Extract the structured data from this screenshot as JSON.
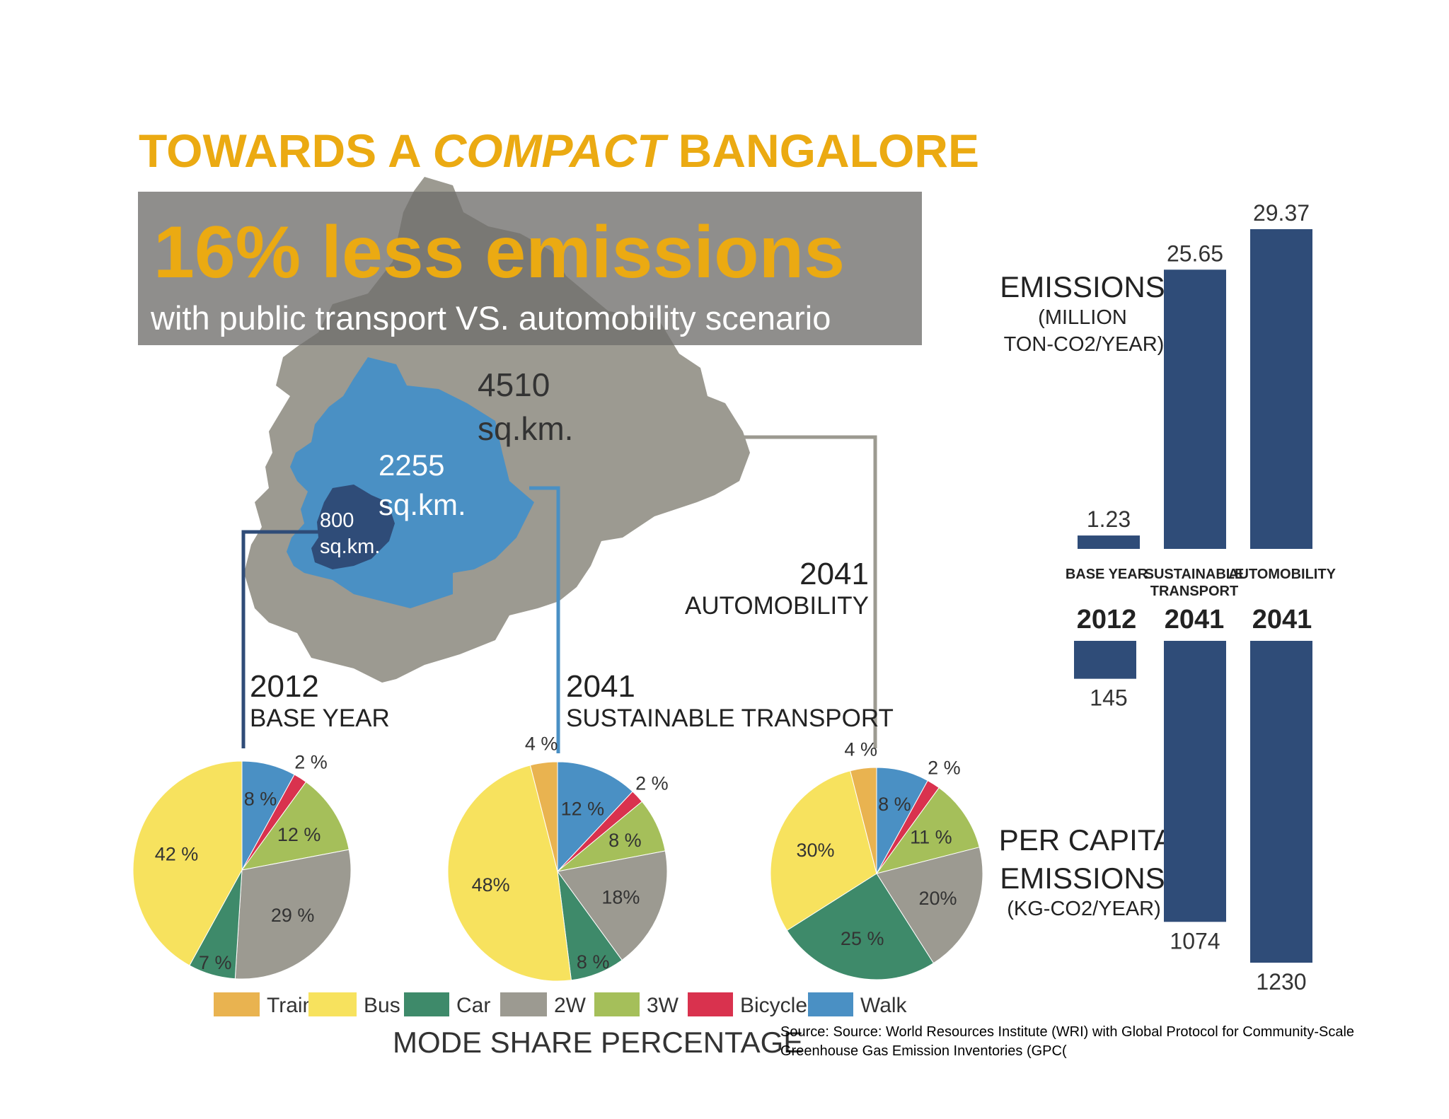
{
  "colors": {
    "title_yellow": "#EBAA12",
    "train": "#E9B350",
    "bus": "#F7E25E",
    "car": "#3E8A6A",
    "2w": "#9C9A91",
    "3w": "#A5BF5A",
    "bicycle": "#D9324E",
    "walk": "#4A90C4",
    "bar_navy": "#2F4C78",
    "map_gray": "#9C9A91",
    "map_blue": "#4A90C4",
    "map_dark": "#2F4C78"
  },
  "title": {
    "part1": "TOWARDS A ",
    "part2": "COMPACT",
    "part3": " BANGALORE"
  },
  "banner": {
    "headline": "16% less emissions",
    "subline": "with public transport VS. automobility scenario"
  },
  "map": {
    "outer_value": "4510",
    "outer_unit": "sq.km.",
    "mid_value": "2255",
    "mid_unit": "sq.km.",
    "inner_value": "800",
    "inner_unit": "sq.km."
  },
  "scenarios": [
    {
      "year": "2012",
      "label": "BASE YEAR"
    },
    {
      "year": "2041",
      "label": "SUSTAINABLE TRANSPORT"
    },
    {
      "year": "2041",
      "label": "AUTOMOBILITY"
    }
  ],
  "legend": {
    "items": [
      "Train",
      "Bus",
      "Car",
      "2W",
      "3W",
      "Bicycle",
      "Walk"
    ],
    "title": "MODE SHARE PERCENTAGE"
  },
  "emissions_panel": {
    "top_label_1": "EMISSIONS",
    "top_label_2": "(MILLION",
    "top_label_3": "TON-CO2/YEAR)",
    "bottom_label_1": "PER CAPITA",
    "bottom_label_2": "EMISSIONS",
    "bottom_label_3": "(KG-CO2/YEAR)",
    "col_label_1": "BASE YEAR",
    "col_label_2a": "SUSTAINABLE",
    "col_label_2b": "TRANSPORT",
    "col_label_3": "AUTOMOBILITY",
    "col_year_1": "2012",
    "col_year_2": "2041",
    "col_year_3": "2041"
  },
  "source": "Source: Source: World Resources Institute (WRI) with Global Protocol for Community-Scale Greenhouse Gas Emission Inventories (GPC(",
  "chart_data": [
    {
      "type": "pie",
      "title": "2012 BASE YEAR",
      "slices": [
        {
          "name": "Walk",
          "value": 8,
          "label": "8 %"
        },
        {
          "name": "Bicycle",
          "value": 2,
          "label": "2 %"
        },
        {
          "name": "3W",
          "value": 12,
          "label": "12 %"
        },
        {
          "name": "2W",
          "value": 29,
          "label": "29 %"
        },
        {
          "name": "Car",
          "value": 7,
          "label": "7 %"
        },
        {
          "name": "Bus",
          "value": 42,
          "label": "42 %"
        }
      ]
    },
    {
      "type": "pie",
      "title": "2041 SUSTAINABLE TRANSPORT",
      "slices": [
        {
          "name": "Walk",
          "value": 12,
          "label": "12 %"
        },
        {
          "name": "Bicycle",
          "value": 2,
          "label": "2 %"
        },
        {
          "name": "3W",
          "value": 8,
          "label": "8 %"
        },
        {
          "name": "2W",
          "value": 18,
          "label": "18%"
        },
        {
          "name": "Car",
          "value": 8,
          "label": "8 %"
        },
        {
          "name": "Bus",
          "value": 48,
          "label": "48%"
        },
        {
          "name": "Train",
          "value": 4,
          "label": "4 %"
        }
      ]
    },
    {
      "type": "pie",
      "title": "2041 AUTOMOBILITY",
      "slices": [
        {
          "name": "Walk",
          "value": 8,
          "label": "8 %"
        },
        {
          "name": "Bicycle",
          "value": 2,
          "label": "2 %"
        },
        {
          "name": "3W",
          "value": 11,
          "label": "11 %"
        },
        {
          "name": "2W",
          "value": 20,
          "label": "20%"
        },
        {
          "name": "Car",
          "value": 25,
          "label": "25 %"
        },
        {
          "name": "Bus",
          "value": 30,
          "label": "30%"
        },
        {
          "name": "Train",
          "value": 4,
          "label": "4 %"
        }
      ]
    },
    {
      "type": "bar",
      "title": "EMISSIONS (MILLION TON-CO2/YEAR)",
      "categories": [
        "BASE YEAR 2012",
        "SUSTAINABLE TRANSPORT 2041",
        "AUTOMOBILITY 2041"
      ],
      "values": [
        1.23,
        25.65,
        29.37
      ],
      "labels": [
        "1.23",
        "25.65",
        "29.37"
      ],
      "ylim": [
        0,
        29.37
      ]
    },
    {
      "type": "bar",
      "title": "PER CAPITA EMISSIONS (KG-CO2/YEAR)",
      "categories": [
        "BASE YEAR 2012",
        "SUSTAINABLE TRANSPORT 2041",
        "AUTOMOBILITY 2041"
      ],
      "values": [
        145,
        1074,
        1230
      ],
      "labels": [
        "145",
        "1074",
        "1230"
      ],
      "ylim": [
        0,
        1230
      ],
      "orientation": "downward"
    }
  ]
}
